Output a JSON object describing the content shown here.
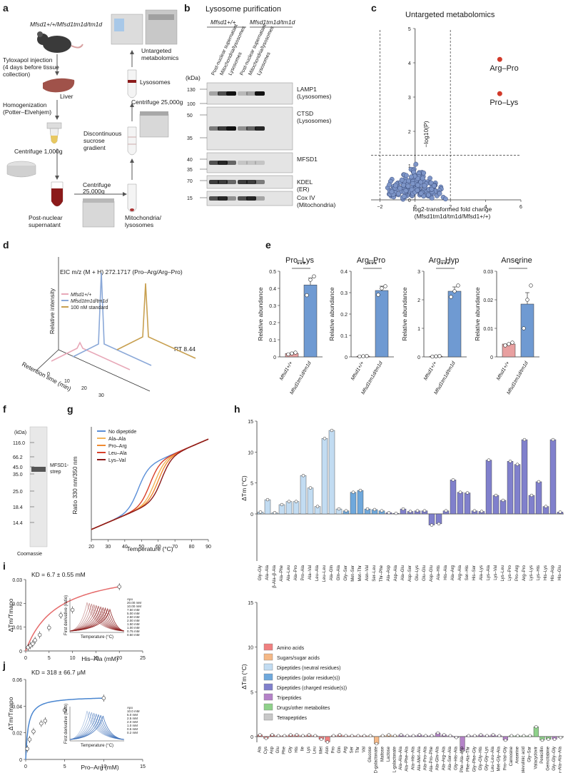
{
  "panels": {
    "a": "a",
    "b": "b",
    "c": "c",
    "d": "d",
    "e": "e",
    "f": "f",
    "g": "g",
    "h": "h",
    "i": "i",
    "j": "j"
  },
  "panel_a": {
    "genotype": "Mfsd1+/+/Mfsd1tm1d/tm1d",
    "injection": [
      "Tyloxapol injection",
      "(4 days before tissue",
      "collection)"
    ],
    "liver": "Liver",
    "homogenization": [
      "Homogenization",
      "(Potter–Elvehjem)"
    ],
    "centrifuge1": "Centrifuge 1,000g",
    "pns": [
      "Post-nuclear",
      "supernatant"
    ],
    "centrifuge2": [
      "Centrifuge",
      "25,000g"
    ],
    "mito": [
      "Mitochondria/",
      "lysosomes"
    ],
    "gradient": [
      "Discontinuous",
      "sucrose",
      "gradient"
    ],
    "centrifuge3": "Centrifuge 25,000g",
    "lysosomes": "Lysosomes",
    "untargeted": [
      "Untargeted",
      "metabolomics"
    ]
  },
  "panel_b": {
    "title": "Lysosome purification",
    "genotype_wt": "Mfsd1+/+",
    "genotype_ko": "Mfsd1tm1d/tm1d",
    "lanes": [
      "Post-nuclear supernatant",
      "Mitochondria/lysosomes",
      "Lysosomes",
      "Post-nuclear supernatant",
      "Mitochondria/lysosomes",
      "Lysosomes"
    ],
    "kda_label": "(kDa)",
    "blots": [
      {
        "name": "LAMP1",
        "sub": "(Lysosomes)",
        "markers": [
          "130",
          "100"
        ]
      },
      {
        "name": "CTSD",
        "sub": "(Lysosomes)",
        "markers": [
          "50",
          "35"
        ]
      },
      {
        "name": "MFSD1",
        "sub": "",
        "markers": [
          "40",
          "35"
        ]
      },
      {
        "name": "KDEL",
        "sub": "(ER)",
        "markers": [
          "70"
        ]
      },
      {
        "name": "Cox IV",
        "sub": "(Mitochondria)",
        "markers": [
          "15"
        ]
      }
    ]
  },
  "panel_c": {
    "title": "Untargeted metabolomics",
    "ylabel": "−log10(P)",
    "xlabel": "log2-transformed fold change",
    "xlabel2": "(Mfsd1tm1d/tm1d/Mfsd1+/+)",
    "xticks": [
      "−2",
      "0",
      "2",
      "4",
      "6"
    ],
    "yticks": [
      "0",
      "1",
      "2",
      "3",
      "4",
      "5"
    ],
    "highlights": [
      {
        "label": "Arg–Pro",
        "x": 4.8,
        "y": 4.1
      },
      {
        "label": "Pro–Lys",
        "x": 4.8,
        "y": 3.1
      }
    ]
  },
  "panel_d": {
    "title": "EIC m/z (M + H) 272.1717 (Pro–Arg/Arg–Pro)",
    "ylabel": "Relative intensity",
    "xlabel": "Retention time (min)",
    "rt": "RT 8.44",
    "legend": [
      "Mfsd1+/+",
      "Mfsd1tm1d/tm1d",
      "100 nM standard"
    ],
    "ticks": [
      "0",
      "10",
      "20",
      "30"
    ],
    "colors": [
      "#e8a8b8",
      "#8aa8d8",
      "#c8a050"
    ]
  },
  "panel_e": {
    "ylabel": "Relative abundance",
    "xlabels": [
      "Mfsd1+/+",
      "Mfsd1tm1d/tm1d"
    ],
    "charts": [
      {
        "title": "Pro–Lys",
        "sig": "***",
        "yticks": [
          "0",
          "0.1",
          "0.2",
          "0.3",
          "0.4",
          "0.5"
        ],
        "ymax": 0.5,
        "wt": 0.02,
        "ko": 0.42,
        "koerr": 0.04,
        "wtpts": [
          0.015,
          0.02,
          0.025
        ],
        "kopts": [
          0.36,
          0.45,
          0.47
        ]
      },
      {
        "title": "Arg–Pro",
        "sig": "***",
        "yticks": [
          "0",
          "0.1",
          "0.2",
          "0.3",
          "0.4"
        ],
        "ymax": 0.4,
        "wt": 0.003,
        "ko": 0.31,
        "koerr": 0.02,
        "wtpts": [
          0.002,
          0.003,
          0.004
        ],
        "kopts": [
          0.29,
          0.32,
          0.33
        ]
      },
      {
        "title": "Arg–Hyp",
        "sig": "***",
        "yticks": [
          "0",
          "1",
          "2",
          "3"
        ],
        "ymax": 3,
        "wt": 0.02,
        "ko": 2.3,
        "koerr": 0.15,
        "wtpts": [
          0.01,
          0.02,
          0.03
        ],
        "kopts": [
          2.1,
          2.3,
          2.5
        ]
      },
      {
        "title": "Anserine",
        "sig": "*",
        "yticks": [
          "0",
          "0.01",
          "0.02",
          "0.03"
        ],
        "ymax": 0.03,
        "wt": 0.0045,
        "ko": 0.0185,
        "koerr": 0.004,
        "wtpts": [
          0.004,
          0.0045,
          0.005
        ],
        "kopts": [
          0.01,
          0.02,
          0.025
        ]
      }
    ]
  },
  "panel_f": {
    "kda": "(kDa)",
    "markers": [
      "116.0",
      "66.2",
      "45.0",
      "35.0",
      "25.0",
      "18.4",
      "14.4"
    ],
    "band": [
      "MFSD1-",
      "strep"
    ],
    "stain": "Coomassie"
  },
  "panel_g": {
    "ylabel": "Ratio 330 nm/350 nm",
    "xlabel": "Temperature (°C)",
    "legend": [
      "No dipeptide",
      "Ala–Ala",
      "Pro–Arg",
      "Leu–Ala",
      "Lys–Val"
    ],
    "colors": [
      "#5b8fd8",
      "#f2b45a",
      "#f08a30",
      "#d8402a",
      "#8b1a1a"
    ],
    "xticks": [
      "20",
      "30",
      "40",
      "50",
      "60",
      "70",
      "80",
      "90"
    ]
  },
  "panel_h": {
    "ylabel": "ΔTm (°C)",
    "top_yticks": [
      "0",
      "5",
      "10",
      "15"
    ],
    "top_labels": [
      "Gly–Gly",
      "Ala–Ala",
      "β-Ala–β-Ala",
      "Ala–Phe",
      "Ala–Leu",
      "Ala–Pro",
      "Pro–Ala",
      "Ala–Val",
      "Leu–Ala",
      "Leu–Leu",
      "Ala–Gln",
      "Gln–Ala",
      "Gly–Ser",
      "Met–Ser",
      "Met–Thr",
      "Asn–Val",
      "Ser–Leu",
      "Thr–Phe",
      "Ala–Asp",
      "Asp–Ala",
      "Ala–Glu",
      "Asp–Ser",
      "Glu–Lys",
      "Glu–Glu",
      "Asp–Glu",
      "Ala–His",
      "His–Ala",
      "Ala–Arg",
      "Arg–Ala",
      "Ser–His",
      "His–Ser",
      "Ala–Lys",
      "Lys–Ala",
      "Lys–Val",
      "Lys–Leu",
      "Lys–Pro",
      "Pro–Arg",
      "Arg–Pro",
      "Lys–Lys",
      "Lys–His",
      "His–Lys",
      "His–Asp",
      "His–Glu"
    ],
    "top_values": [
      0.3,
      2.3,
      0.2,
      1.5,
      2,
      2,
      6.2,
      4.2,
      1.2,
      12.2,
      13.5,
      0.8,
      0.5,
      3.5,
      3.8,
      0.8,
      0.7,
      0.5,
      0.2,
      0.1,
      0.8,
      0.4,
      0.5,
      0.5,
      -1.8,
      -1.6,
      0.5,
      5.5,
      3.5,
      3.4,
      0.5,
      0.4,
      8.7,
      3,
      2.2,
      8.5,
      8,
      12,
      3,
      5.2,
      1.2,
      12,
      0.3
    ],
    "top_cats": [
      2,
      2,
      2,
      2,
      2,
      2,
      2,
      2,
      2,
      2,
      2,
      2,
      3,
      3,
      3,
      3,
      3,
      3,
      4,
      4,
      4,
      4,
      4,
      4,
      4,
      4,
      4,
      4,
      4,
      4,
      4,
      4,
      4,
      4,
      4,
      4,
      4,
      4,
      4,
      4,
      4,
      4,
      4
    ],
    "bottom_yticks": [
      "0",
      "5",
      "10",
      "15"
    ],
    "bottom_labels": [
      "Ala",
      "Cys",
      "Asp",
      "Glu",
      "Phe",
      "Gly",
      "His",
      "Ile",
      "Lys",
      "Leu",
      "Met",
      "Asn",
      "Pro",
      "Gln",
      "Arg",
      "Ser",
      "Thr",
      "Val",
      "Glucose",
      "D-galactonate",
      "Maltose",
      "Lactose",
      "L-galactonate",
      "Ala–Ala–Ala",
      "Ala–Phe–Ala",
      "Ala–His–Ala",
      "Ala–Met–Ala",
      "Ala–Pro–Ala",
      "Ala–Pro–Phe",
      "Ala–Gln–Ala",
      "Ala–Arg–Ala",
      "Ala–Ser–Ala",
      "Gly–His–Ala",
      "Phe–Ala–Asp",
      "Phe–Ala–Thr",
      "Gly–Phe–Gly",
      "Gly–Gly–His",
      "Gly–Gly–Lys",
      "Leu–Leu–Ala",
      "Met–Gly–Ala",
      "Pro–Val–Gly",
      "Carnosine",
      "Anserine",
      "5-Aminolevulinic acid",
      "Gly–Sar",
      "Valacyclovir",
      "Penicillin",
      "Gemcitabine",
      "Gly–Gly–Gly",
      "Ala–Ala–Ala–Ala"
    ],
    "bottom_values": [
      0.2,
      -0.2,
      0.2,
      0.1,
      0.1,
      0.2,
      0.2,
      0.1,
      0.2,
      0.1,
      -0.3,
      -0.6,
      0.1,
      0.2,
      0.1,
      0.1,
      0.1,
      0.1,
      0.1,
      -0.8,
      0.1,
      0.2,
      0.1,
      0.2,
      0.1,
      0.1,
      0.2,
      0.1,
      0.1,
      0.4,
      0.2,
      0.1,
      -0.1,
      -1.6,
      0.1,
      0.1,
      0.2,
      0.1,
      0.2,
      0.1,
      -0.4,
      0.1,
      0.1,
      0.1,
      0.1,
      1.1,
      -0.4,
      -0.3,
      -0.3,
      -0.1
    ],
    "bottom_cats": [
      0,
      0,
      0,
      0,
      0,
      0,
      0,
      0,
      0,
      0,
      0,
      0,
      0,
      0,
      0,
      0,
      0,
      0,
      1,
      1,
      1,
      1,
      1,
      5,
      5,
      5,
      5,
      5,
      5,
      5,
      5,
      5,
      5,
      5,
      5,
      5,
      5,
      5,
      5,
      5,
      5,
      6,
      6,
      6,
      6,
      6,
      6,
      6,
      5,
      7
    ],
    "legend": [
      "Amino acids",
      "Sugars/sugar acids",
      "Dipeptides (neutral residues)",
      "Dipeptides (polar residue(s))",
      "Dipeptides (charged residue(s))",
      "Tripeptides",
      "Drugs/other metabolites",
      "Tetrapeptides"
    ],
    "legend_colors": [
      "#f08080",
      "#f5b886",
      "#c2dcf2",
      "#6fa8dc",
      "#8080cc",
      "#b482c8",
      "#8fd18a",
      "#c8c8c8"
    ]
  },
  "panel_i": {
    "kd": "KD = 6.7 ± 0.55 mM",
    "ylabel": "ΔTm/Tmapo",
    "xlabel": "His–Ala (mM)",
    "yticks": [
      "0",
      "0.01",
      "0.02",
      "0.03"
    ],
    "xticks": [
      "0",
      "5",
      "10",
      "15",
      "20",
      "25"
    ],
    "x": [
      0.5,
      1.0,
      1.5,
      2.0,
      3.0,
      5.0,
      7.5,
      10.0,
      20.0
    ],
    "y": [
      0.002,
      0.003,
      0.004,
      0.006,
      0.009,
      0.013,
      0.02,
      0.023,
      0.036
    ],
    "inset_legend": [
      "Apo",
      "20.00 mM",
      "10.00 mM",
      "7.50 mM",
      "5.00 mM",
      "2.50 mM",
      "2.00 mM",
      "1.50 mM",
      "1.00 mM",
      "0.75 mM",
      "0.50 mM"
    ],
    "inset_ylabel": "First derivative (ratio)",
    "inset_xlabel": "Temperature (°C)"
  },
  "panel_j": {
    "kd": "KD = 318 ± 66.7 μM",
    "ylabel": "ΔTm/Tmapo",
    "xlabel": "Pro–Arg (mM)",
    "yticks": [
      "0",
      "0.02",
      "0.04",
      "0.06"
    ],
    "xticks": [
      "0",
      "5",
      "10",
      "15"
    ],
    "x": [
      0.2,
      0.5,
      1.0,
      2.0,
      2.5,
      5.0,
      10.0
    ],
    "y": [
      0.008,
      0.015,
      0.021,
      0.027,
      0.029,
      0.037,
      0.046
    ],
    "inset_legend": [
      "Apo",
      "10.0 mM",
      "5.0 mM",
      "2.5 mM",
      "2.0 mM",
      "1.0 mM",
      "0.5 mM",
      "0.2 mM"
    ],
    "inset_ylabel": "First derivative (ratio)",
    "inset_xlabel": "Temperature (°C)"
  }
}
